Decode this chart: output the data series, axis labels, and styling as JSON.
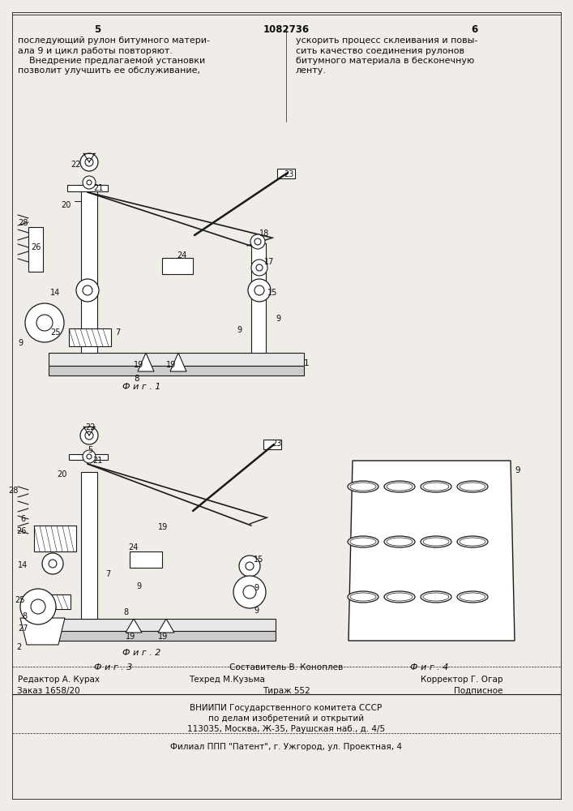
{
  "page_number_left": "5",
  "patent_number": "1082736",
  "page_number_right": "6",
  "col_left_text": [
    "последующий рулон битумного матери-",
    "ала 9 и цикл работы повторяют.",
    "    Внедрение предлагаемой установки",
    "позволит улучшить ее обслуживание,"
  ],
  "col_right_text": [
    "ускорить процесс склеивания и повы-",
    "сить качество соединения рулонов",
    "битумного материала в бесконечную",
    "ленту."
  ],
  "footer_editor": "Редактор А. Курах",
  "footer_techred": "Техред М.Кузьма",
  "footer_corrector": "Корректор Г. Огар",
  "footer_order": "Заказ 1658/20",
  "footer_tirazh": "Тираж 552",
  "footer_podpisnoe": "Подписное",
  "footer_vniipи": "ВНИИПИ Государственного комитета СССР",
  "footer_dela": "по делам изобретений и открытий",
  "footer_address": "113035, Москва, Ж-35, Раушская наб., д. 4/5",
  "footer_filial": "Филиал ППП \"Патент\", г. Ужгород, ул. Проектная, 4",
  "composer": "Составитель В. Коноплев",
  "bg_color": "#f0ede8",
  "line_color": "#1a1a1a",
  "text_color": "#0d0d0d"
}
